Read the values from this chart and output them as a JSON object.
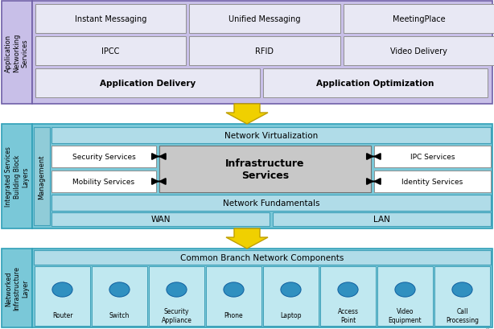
{
  "fig_width": 6.14,
  "fig_height": 4.1,
  "dpi": 100,
  "colors": {
    "app_bg": "#c8bfe8",
    "app_border": "#7060a8",
    "int_bg": "#7ac8d8",
    "int_border": "#30a0b8",
    "net_bg": "#7ac8d8",
    "net_border": "#30a0b8",
    "white": "#ffffff",
    "white_border": "#a0a0a0",
    "cyan_bar": "#b0dce8",
    "cyan_bar_border": "#40a0b8",
    "mgmt_bg": "#90ccd8",
    "mgmt_border": "#40a0b8",
    "infra_svc_bg": "#c8c8c8",
    "infra_svc_border": "#707070",
    "dev_bg": "#c0e8f0",
    "dev_border": "#40a0b8",
    "arrow_yellow": "#f0d000",
    "arrow_yellow_border": "#c0a000",
    "app_row_bg": "#dcdcf0"
  },
  "app_layer": {
    "side_label": "Application\nNetworking\nServices",
    "row1": [
      "Instant Messaging",
      "Unified Messaging",
      "MeetingPlace"
    ],
    "row2": [
      "IPCC",
      "RFID",
      "Video Delivery"
    ],
    "row3": [
      "Application Delivery",
      "Application Optimization"
    ]
  },
  "int_layer": {
    "side_label": "Integrated Services\nBuilding Block\nLayers",
    "mgmt_label": "Management",
    "nv_label": "Network Virtualization",
    "left": [
      "Security Services",
      "Mobility Services"
    ],
    "center": "Infrastructure\nServices",
    "right": [
      "IPC Services",
      "Identity Services"
    ],
    "nf_label": "Network Fundamentals",
    "wan": "WAN",
    "lan": "LAN"
  },
  "net_layer": {
    "side_label": "Networked\nInfrastructure\nLayer",
    "header": "Common Branch Network Components",
    "devices": [
      "Router",
      "Switch",
      "Security\nAppliance",
      "Phone",
      "Laptop",
      "Access\nPoint",
      "Video\nEquipment",
      "Call\nProcessing"
    ]
  }
}
